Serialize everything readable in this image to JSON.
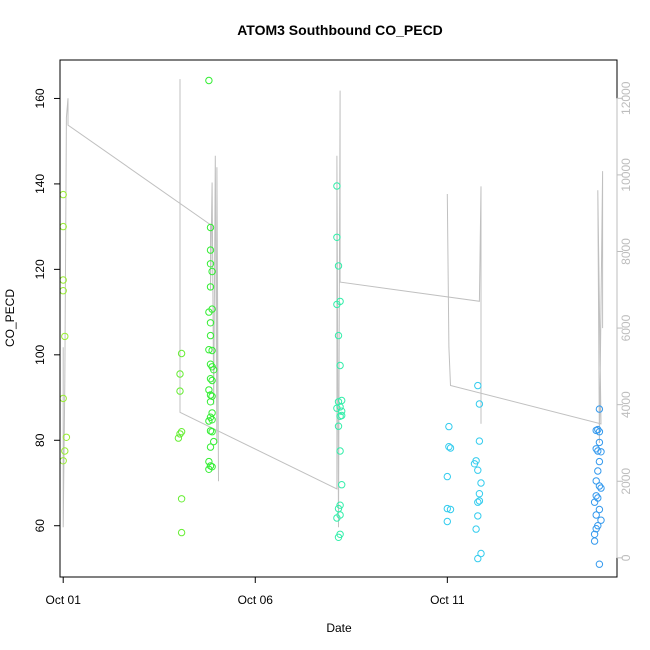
{
  "chart_data": {
    "type": "scatter",
    "title": "ATOM3 Southbound CO_PECD",
    "xlabel": "Date",
    "ylabel": "CO_PECD",
    "x_ticks": [
      "Oct 01",
      "Oct 06",
      "Oct 11"
    ],
    "xlim": [
      "2019-09-30T22:00",
      "2019-10-15T10:00"
    ],
    "ylim": [
      48,
      169
    ],
    "y_ticks": [
      60,
      80,
      100,
      120,
      140,
      160
    ],
    "y2lim": [
      -500,
      13000
    ],
    "y2_ticks": [
      0,
      2000,
      4000,
      6000,
      8000,
      10000,
      12000
    ],
    "grid": false,
    "colors": {
      "points": [
        "#99ee33",
        "#66ee33",
        "#33ee33",
        "#33ee66",
        "#33eeaa",
        "#33eedd",
        "#33ccee",
        "#33aaee",
        "#3399ee"
      ],
      "secondary_line": "#c0c0c0",
      "secondary_axis": "#bdbdbd"
    },
    "series": [
      {
        "axis": "left",
        "type": "scatter",
        "points": [
          [
            "2019-10-01T00:00",
            137.5
          ],
          [
            "2019-10-01T00:00",
            130
          ],
          [
            "2019-10-01T00:00",
            117.5
          ],
          [
            "2019-10-01T00:00",
            115
          ],
          [
            "2019-10-01T01:00",
            104.3
          ],
          [
            "2019-10-01T00:00",
            89.8
          ],
          [
            "2019-10-01T02:00",
            80.7
          ],
          [
            "2019-10-01T01:00",
            77.5
          ],
          [
            "2019-10-01T00:00",
            75.2
          ],
          [
            "2019-10-04T02:00",
            100.3
          ],
          [
            "2019-10-04T01:00",
            95.5
          ],
          [
            "2019-10-04T01:00",
            91.5
          ],
          [
            "2019-10-04T02:00",
            82
          ],
          [
            "2019-10-04T01:00",
            81.5
          ],
          [
            "2019-10-04T00:00",
            80.5
          ],
          [
            "2019-10-04T02:00",
            66.3
          ],
          [
            "2019-10-04T02:00",
            58.4
          ],
          [
            "2019-10-04T19:00",
            164.2
          ],
          [
            "2019-10-04T20:00",
            129.8
          ],
          [
            "2019-10-04T20:00",
            124.5
          ],
          [
            "2019-10-04T20:00",
            121.3
          ],
          [
            "2019-10-04T21:00",
            119.5
          ],
          [
            "2019-10-04T20:00",
            115.9
          ],
          [
            "2019-10-04T19:00",
            110
          ],
          [
            "2019-10-04T21:00",
            110.7
          ],
          [
            "2019-10-04T20:00",
            107.5
          ],
          [
            "2019-10-04T20:00",
            104.5
          ],
          [
            "2019-10-04T19:00",
            101.2
          ],
          [
            "2019-10-04T21:00",
            101
          ],
          [
            "2019-10-04T20:00",
            97.8
          ],
          [
            "2019-10-04T21:00",
            97.2
          ],
          [
            "2019-10-04T22:00",
            96.5
          ],
          [
            "2019-10-04T20:00",
            94.4
          ],
          [
            "2019-10-04T21:00",
            94
          ],
          [
            "2019-10-04T19:00",
            91.8
          ],
          [
            "2019-10-04T20:00",
            90.6
          ],
          [
            "2019-10-04T21:00",
            90.3
          ],
          [
            "2019-10-04T20:00",
            89
          ],
          [
            "2019-10-04T21:00",
            86.4
          ],
          [
            "2019-10-04T20:00",
            85.4
          ],
          [
            "2019-10-04T19:00",
            84.5
          ],
          [
            "2019-10-04T21:00",
            84.8
          ],
          [
            "2019-10-04T20:00",
            82.2
          ],
          [
            "2019-10-04T21:00",
            82
          ],
          [
            "2019-10-04T22:00",
            79.7
          ],
          [
            "2019-10-04T20:00",
            78.4
          ],
          [
            "2019-10-04T19:00",
            75
          ],
          [
            "2019-10-04T20:00",
            74
          ],
          [
            "2019-10-04T19:00",
            73.2
          ],
          [
            "2019-10-04T21:00",
            73.8
          ],
          [
            "2019-10-08T03:00",
            139.5
          ],
          [
            "2019-10-08T03:00",
            127.5
          ],
          [
            "2019-10-08T04:00",
            120.8
          ],
          [
            "2019-10-08T05:00",
            112.5
          ],
          [
            "2019-10-08T03:00",
            111.8
          ],
          [
            "2019-10-08T04:00",
            104.5
          ],
          [
            "2019-10-08T05:00",
            97.5
          ],
          [
            "2019-10-08T04:00",
            89
          ],
          [
            "2019-10-08T06:00",
            89.3
          ],
          [
            "2019-10-08T05:00",
            87.8
          ],
          [
            "2019-10-08T03:00",
            87.5
          ],
          [
            "2019-10-08T06:00",
            86.8
          ],
          [
            "2019-10-08T05:00",
            85.6
          ],
          [
            "2019-10-08T06:00",
            85.8
          ],
          [
            "2019-10-08T04:00",
            83.3
          ],
          [
            "2019-10-08T05:00",
            77.5
          ],
          [
            "2019-10-08T06:00",
            69.6
          ],
          [
            "2019-10-08T05:00",
            64.8
          ],
          [
            "2019-10-08T04:00",
            64
          ],
          [
            "2019-10-08T03:00",
            61.8
          ],
          [
            "2019-10-08T05:00",
            62.5
          ],
          [
            "2019-10-08T05:00",
            58
          ],
          [
            "2019-10-08T04:00",
            57.3
          ],
          [
            "2019-10-11T01:00",
            83.2
          ],
          [
            "2019-10-11T01:00",
            78.5
          ],
          [
            "2019-10-11T02:00",
            78.2
          ],
          [
            "2019-10-11T00:00",
            71.5
          ],
          [
            "2019-10-11T00:00",
            64
          ],
          [
            "2019-10-11T02:00",
            63.8
          ],
          [
            "2019-10-11T00:00",
            61
          ],
          [
            "2019-10-11T19:00",
            92.8
          ],
          [
            "2019-10-11T20:00",
            88.5
          ],
          [
            "2019-10-11T20:00",
            79.8
          ],
          [
            "2019-10-11T18:00",
            75.2
          ],
          [
            "2019-10-11T17:00",
            74.5
          ],
          [
            "2019-10-11T19:00",
            73
          ],
          [
            "2019-10-11T21:00",
            70
          ],
          [
            "2019-10-11T20:00",
            67.5
          ],
          [
            "2019-10-11T19:00",
            65.5
          ],
          [
            "2019-10-11T20:00",
            65.8
          ],
          [
            "2019-10-11T19:00",
            62.3
          ],
          [
            "2019-10-11T18:00",
            59.2
          ],
          [
            "2019-10-11T21:00",
            53.5
          ],
          [
            "2019-10-11T19:00",
            52.3
          ],
          [
            "2019-10-14T23:00",
            87.3
          ],
          [
            "2019-10-14T21:00",
            82.3
          ],
          [
            "2019-10-14T22:00",
            82.5
          ],
          [
            "2019-10-14T23:00",
            82
          ],
          [
            "2019-10-14T23:00",
            79.5
          ],
          [
            "2019-10-14T21:00",
            78
          ],
          [
            "2019-10-14T22:00",
            77.5
          ],
          [
            "2019-10-15T00:00",
            77.3
          ],
          [
            "2019-10-14T23:00",
            75
          ],
          [
            "2019-10-14T22:00",
            72.8
          ],
          [
            "2019-10-14T21:00",
            70.5
          ],
          [
            "2019-10-14T23:00",
            69.3
          ],
          [
            "2019-10-15T00:00",
            68.8
          ],
          [
            "2019-10-14T21:00",
            67
          ],
          [
            "2019-10-14T22:00",
            66.5
          ],
          [
            "2019-10-14T20:00",
            65.5
          ],
          [
            "2019-10-14T23:00",
            63.8
          ],
          [
            "2019-10-14T21:00",
            62.5
          ],
          [
            "2019-10-15T00:00",
            61.3
          ],
          [
            "2019-10-14T22:00",
            60
          ],
          [
            "2019-10-14T21:00",
            59.3
          ],
          [
            "2019-10-14T20:00",
            58
          ],
          [
            "2019-10-14T20:00",
            56.4
          ],
          [
            "2019-10-14T23:00",
            51
          ]
        ]
      },
      {
        "axis": "right",
        "type": "line",
        "segments": [
          [
            [
              "2019-10-01T00:00",
              2500
            ],
            [
              "2019-10-01T00:00",
              5500
            ],
            [
              "2019-10-01T00:00",
              800
            ],
            [
              "2019-10-01T01:00",
              4500
            ],
            [
              "2019-10-01T02:00",
              11500
            ],
            [
              "2019-10-01T03:00",
              12000
            ],
            [
              "2019-10-01T03:00",
              11300
            ],
            [
              "2019-10-04T20:00",
              8700
            ],
            [
              "2019-10-04T20:00",
              7000
            ],
            [
              "2019-10-04T21:00",
              9800
            ],
            [
              "2019-10-04T22:00",
              4000
            ],
            [
              "2019-10-04T23:00",
              10500
            ],
            [
              "2019-10-05T00:00",
              3000
            ],
            [
              "2019-10-05T00:00",
              10200
            ],
            [
              "2019-10-05T01:00",
              2000
            ]
          ],
          [
            [
              "2019-10-04T01:00",
              12500
            ],
            [
              "2019-10-04T01:00",
              9500
            ],
            [
              "2019-10-04T01:00",
              3800
            ],
            [
              "2019-10-08T03:00",
              1800
            ],
            [
              "2019-10-08T03:00",
              10500
            ],
            [
              "2019-10-08T04:00",
              800
            ],
            [
              "2019-10-08T05:00",
              12200
            ],
            [
              "2019-10-08T05:00",
              7200
            ],
            [
              "2019-10-11T20:00",
              6700
            ],
            [
              "2019-10-11T21:00",
              9700
            ],
            [
              "2019-10-11T21:00",
              3500
            ]
          ],
          [
            [
              "2019-10-11T00:00",
              9500
            ],
            [
              "2019-10-11T01:00",
              5500
            ],
            [
              "2019-10-11T02:00",
              4500
            ],
            [
              "2019-10-15T00:00",
              3500
            ],
            [
              "2019-10-14T22:00",
              9600
            ],
            [
              "2019-10-14T23:00",
              3000
            ],
            [
              "2019-10-15T01:00",
              10100
            ],
            [
              "2019-10-15T01:00",
              6000
            ]
          ]
        ]
      }
    ]
  }
}
